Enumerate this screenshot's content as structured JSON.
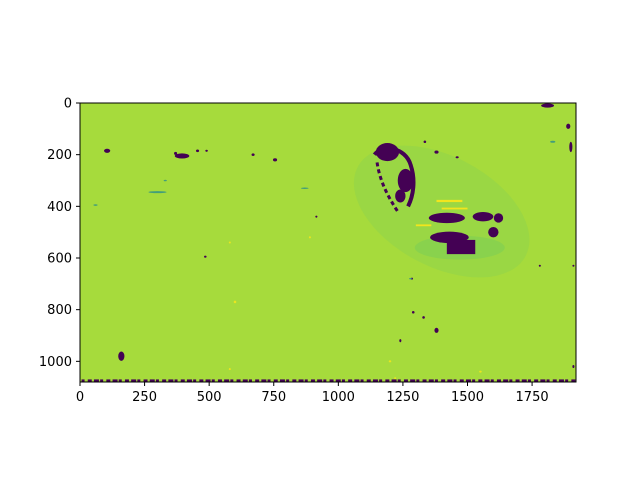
{
  "chart_data": {
    "type": "heatmap",
    "title": "",
    "xlabel": "",
    "ylabel": "",
    "image_width": 1920,
    "image_height": 1080,
    "xlim": [
      0,
      1920
    ],
    "ylim": [
      1080,
      0
    ],
    "x_ticks": [
      0,
      250,
      500,
      750,
      1000,
      1250,
      1500,
      1750
    ],
    "y_ticks": [
      0,
      200,
      400,
      600,
      800,
      1000
    ],
    "x_tick_labels": [
      "0",
      "250",
      "500",
      "750",
      "1000",
      "1250",
      "1500",
      "1750"
    ],
    "y_tick_labels": [
      "0",
      "200",
      "400",
      "600",
      "800",
      "1000"
    ],
    "colormap": "viridis",
    "background_color": "#a6db3c",
    "low_value_color": "#440154",
    "mid_value_color": "#2a8f8a",
    "high_value_color": "#f2e51d",
    "grid": false,
    "colorbar": false,
    "features": {
      "vehicle_outline": {
        "description_label": "",
        "center": [
          1380,
          390
        ],
        "extent": [
          1120,
          160,
          1640,
          600
        ]
      }
    }
  }
}
